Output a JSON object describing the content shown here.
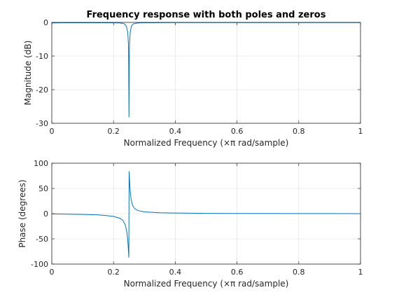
{
  "chart_data": [
    {
      "type": "line",
      "title": "Frequency response with both poles and zeros",
      "xlabel": "Normalized Frequency  (×π rad/sample)",
      "ylabel": "Magnitude (dB)",
      "xlim": [
        0,
        1
      ],
      "ylim": [
        -30,
        0
      ],
      "xticks": [
        "0",
        "0.2",
        "0.4",
        "0.6",
        "0.8",
        "1"
      ],
      "yticks": [
        "-30",
        "-20",
        "-10",
        "0"
      ],
      "grid": true,
      "series": [
        {
          "color": "#0072BD",
          "x": [
            0,
            0.05,
            0.1,
            0.15,
            0.2,
            0.22,
            0.235,
            0.242,
            0.246,
            0.248,
            0.249,
            0.25,
            0.251,
            0.252,
            0.254,
            0.258,
            0.265,
            0.28,
            0.3,
            0.4,
            0.5,
            0.6,
            0.7,
            0.8,
            0.9,
            1
          ],
          "y": [
            -0.15,
            -0.1,
            -0.1,
            -0.1,
            -0.12,
            -0.15,
            -0.4,
            -1.2,
            -3,
            -6,
            -11,
            -28.2,
            -11,
            -6,
            -3,
            -1.0,
            -0.4,
            -0.15,
            -0.1,
            -0.05,
            -0.05,
            -0.05,
            -0.05,
            -0.05,
            -0.05,
            -0.05
          ]
        }
      ]
    },
    {
      "type": "line",
      "title": "",
      "xlabel": "Normalized Frequency  (×π rad/sample)",
      "ylabel": "Phase (degrees)",
      "xlim": [
        0,
        1
      ],
      "ylim": [
        -100,
        100
      ],
      "xticks": [
        "0",
        "0.2",
        "0.4",
        "0.6",
        "0.8",
        "1"
      ],
      "yticks": [
        "-100",
        "-50",
        "0",
        "50",
        "100"
      ],
      "grid": true,
      "series": [
        {
          "color": "#0072BD",
          "x": [
            0,
            0.05,
            0.1,
            0.15,
            0.18,
            0.2,
            0.22,
            0.23,
            0.238,
            0.243,
            0.246,
            0.248,
            0.2495,
            0.2505,
            0.252,
            0.254,
            0.257,
            0.262,
            0.27,
            0.28,
            0.3,
            0.35,
            0.4,
            0.5,
            0.6,
            0.7,
            0.8,
            0.9,
            1
          ],
          "y": [
            -0.5,
            -1,
            -1.5,
            -2.5,
            -4,
            -5.5,
            -9,
            -13,
            -22,
            -36,
            -52,
            -70,
            -87,
            84,
            65,
            45,
            28,
            16,
            9,
            6,
            3.5,
            1.8,
            1.2,
            0.6,
            0.4,
            0.3,
            0.2,
            0.1,
            0
          ]
        }
      ]
    }
  ]
}
